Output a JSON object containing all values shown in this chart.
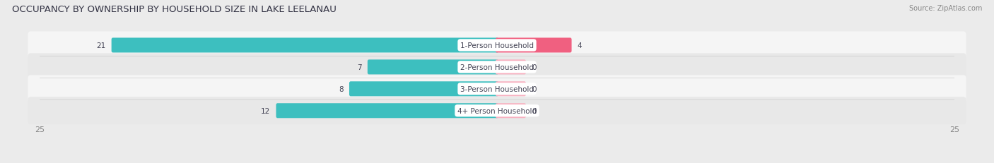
{
  "title": "OCCUPANCY BY OWNERSHIP BY HOUSEHOLD SIZE IN LAKE LEELANAU",
  "source": "Source: ZipAtlas.com",
  "categories": [
    "1-Person Household",
    "2-Person Household",
    "3-Person Household",
    "4+ Person Household"
  ],
  "owner_values": [
    21,
    7,
    8,
    12
  ],
  "renter_values": [
    4,
    0,
    0,
    0
  ],
  "renter_min_display": [
    4,
    1.5,
    1.5,
    1.5
  ],
  "owner_color": "#3DBFBF",
  "renter_color_full": "#F06080",
  "renter_color_zero": "#F8B0C0",
  "xlim": 25,
  "bar_height": 0.52,
  "bg_color": "#ebebeb",
  "row_bg_even": "#f5f5f5",
  "row_bg_odd": "#e8e8e8",
  "label_color": "#444455",
  "value_color_light": "#888899",
  "title_fontsize": 9.5,
  "label_fontsize": 7.5,
  "value_fontsize": 7.5,
  "axis_fontsize": 8
}
